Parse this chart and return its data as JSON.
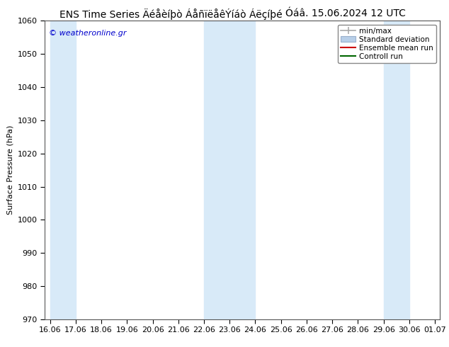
{
  "title_left": "ENS Time Series Äéåèíþò ÁåñïëåêÝíáò Áëçíþé",
  "title_right": "Óáâ. 15.06.2024 12 UTC",
  "ylabel": "Surface Pressure (hPa)",
  "ylim": [
    970,
    1060
  ],
  "yticks": [
    970,
    980,
    990,
    1000,
    1010,
    1020,
    1030,
    1040,
    1050,
    1060
  ],
  "xtick_labels": [
    "16.06",
    "17.06",
    "18.06",
    "19.06",
    "20.06",
    "21.06",
    "22.06",
    "23.06",
    "24.06",
    "25.06",
    "26.06",
    "27.06",
    "28.06",
    "29.06",
    "30.06",
    "01.07"
  ],
  "shaded_ranges": [
    [
      0,
      1
    ],
    [
      6,
      8
    ],
    [
      13,
      14
    ]
  ],
  "shade_color": "#d8eaf8",
  "background_color": "#ffffff",
  "legend_entries": [
    "min/max",
    "Standard deviation",
    "Ensemble mean run",
    "Controll run"
  ],
  "legend_colors_line": [
    "#aaaaaa",
    "#b8cfe8",
    "#cc0000",
    "#006600"
  ],
  "watermark": "© weatheronline.gr",
  "watermark_color": "#0000cc",
  "title_fontsize": 10,
  "ylabel_fontsize": 8,
  "tick_fontsize": 8,
  "legend_fontsize": 7.5
}
